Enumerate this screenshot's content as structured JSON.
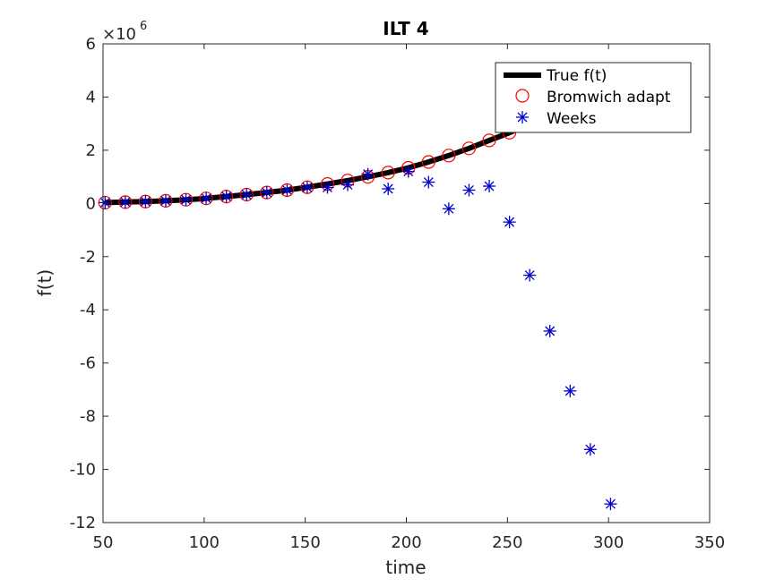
{
  "chart_data": {
    "type": "scatter",
    "title": "ILT 4",
    "xlabel": "time",
    "ylabel": "f(t)",
    "y_exponent_label": "×10",
    "y_exponent": "6",
    "xlim": [
      50,
      350
    ],
    "ylim": [
      -12,
      6
    ],
    "x_ticks": [
      50,
      100,
      150,
      200,
      250,
      300,
      350
    ],
    "y_ticks": [
      -12,
      -10,
      -8,
      -6,
      -4,
      -2,
      0,
      2,
      4,
      6
    ],
    "x_tick_labels": [
      "50",
      "100",
      "150",
      "200",
      "250",
      "300",
      "350"
    ],
    "y_tick_labels": [
      "-12",
      "-10",
      "-8",
      "-6",
      "-4",
      "-2",
      "0",
      "2",
      "4",
      "6"
    ],
    "grid": false,
    "legend_position": "top-right",
    "series": [
      {
        "name": "True f(t)",
        "style": "line",
        "color": "#000000",
        "x": [
          51,
          61,
          71,
          81,
          91,
          101,
          111,
          121,
          131,
          141,
          151,
          161,
          171,
          181,
          191,
          201,
          211,
          221,
          231,
          241,
          251,
          261,
          271
        ],
        "y": [
          0.03,
          0.05,
          0.07,
          0.1,
          0.14,
          0.19,
          0.26,
          0.33,
          0.41,
          0.5,
          0.61,
          0.73,
          0.86,
          1.0,
          1.16,
          1.34,
          1.56,
          1.8,
          2.07,
          2.37,
          2.66,
          3.0,
          3.38
        ]
      },
      {
        "name": "Bromwich adapt",
        "style": "circle",
        "color": "#ff0000",
        "x": [
          51,
          61,
          71,
          81,
          91,
          101,
          111,
          121,
          131,
          141,
          151,
          161,
          171,
          181,
          191,
          201,
          211,
          221,
          231,
          241,
          251
        ],
        "y": [
          0.03,
          0.05,
          0.07,
          0.1,
          0.14,
          0.19,
          0.26,
          0.33,
          0.41,
          0.5,
          0.61,
          0.73,
          0.86,
          1.0,
          1.16,
          1.34,
          1.56,
          1.8,
          2.07,
          2.37,
          2.66
        ]
      },
      {
        "name": "Weeks",
        "style": "asterisk",
        "color": "#0000c8",
        "x": [
          51,
          61,
          71,
          81,
          91,
          101,
          111,
          121,
          131,
          141,
          151,
          161,
          171,
          181,
          191,
          201,
          211,
          221,
          231,
          241,
          251,
          261,
          271,
          281,
          291,
          301
        ],
        "y": [
          0.03,
          0.05,
          0.07,
          0.1,
          0.14,
          0.19,
          0.26,
          0.33,
          0.41,
          0.5,
          0.6,
          0.6,
          0.7,
          1.1,
          0.55,
          1.2,
          0.8,
          -0.2,
          0.5,
          0.65,
          -0.7,
          -2.7,
          -4.8,
          -7.05,
          -9.25,
          -11.3
        ]
      }
    ]
  }
}
